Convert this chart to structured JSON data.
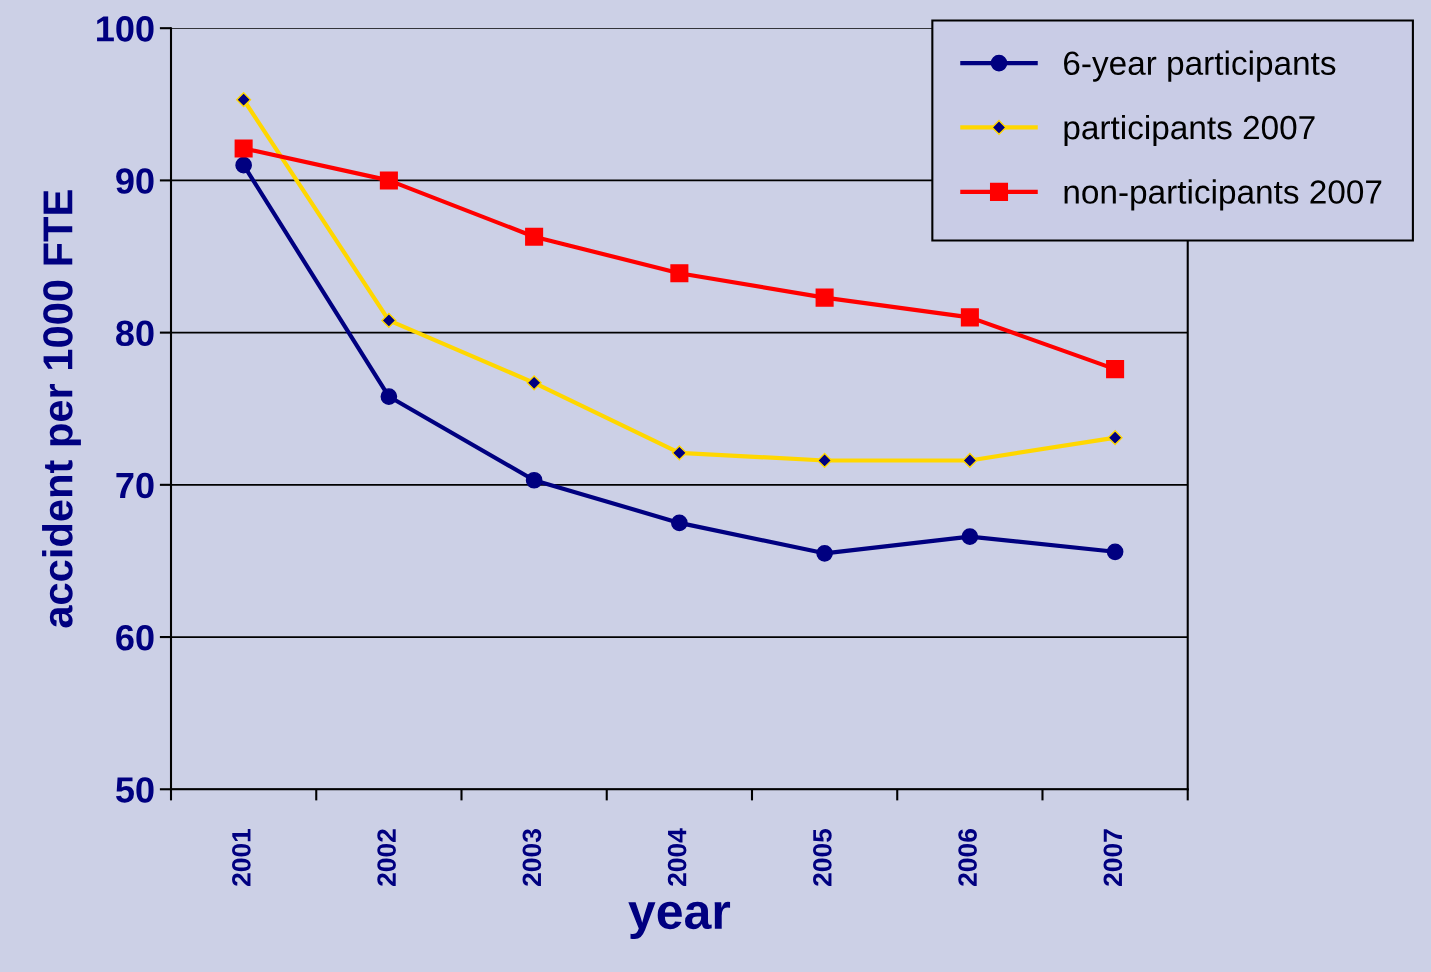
{
  "chart_data": {
    "type": "line",
    "xlabel": "year",
    "ylabel": "accident per 1000 FTE",
    "categories": [
      "2001",
      "2002",
      "2003",
      "2004",
      "2005",
      "2006",
      "2007"
    ],
    "series": [
      {
        "name": "6-year participants",
        "color": "#000080",
        "marker": "circle",
        "values": [
          91.0,
          75.8,
          70.3,
          67.5,
          65.5,
          66.6,
          65.6
        ]
      },
      {
        "name": "participants 2007",
        "color": "#ffd700",
        "marker": "diamond",
        "values": [
          95.3,
          80.8,
          76.7,
          72.1,
          71.6,
          71.6,
          73.1
        ]
      },
      {
        "name": "non-participants 2007",
        "color": "#ff0000",
        "marker": "square",
        "values": [
          92.1,
          90.0,
          86.3,
          83.9,
          82.3,
          81.0,
          77.6
        ]
      }
    ],
    "ylim": [
      50,
      100
    ],
    "yticks": [
      50,
      60,
      70,
      80,
      90,
      100
    ],
    "grid": "y",
    "legend": "top right"
  }
}
